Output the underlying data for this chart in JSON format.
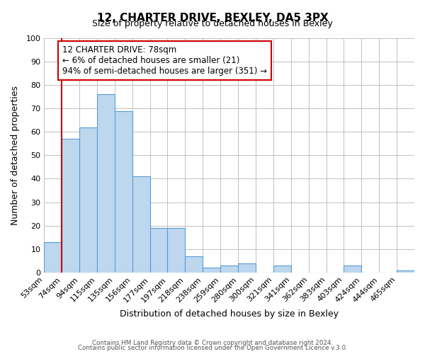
{
  "title": "12, CHARTER DRIVE, BEXLEY, DA5 3PX",
  "subtitle": "Size of property relative to detached houses in Bexley",
  "xlabel": "Distribution of detached houses by size in Bexley",
  "ylabel": "Number of detached properties",
  "bin_labels": [
    "53sqm",
    "74sqm",
    "94sqm",
    "115sqm",
    "135sqm",
    "156sqm",
    "177sqm",
    "197sqm",
    "218sqm",
    "238sqm",
    "259sqm",
    "280sqm",
    "300sqm",
    "321sqm",
    "341sqm",
    "362sqm",
    "383sqm",
    "403sqm",
    "424sqm",
    "444sqm",
    "465sqm"
  ],
  "bar_values": [
    13,
    57,
    62,
    76,
    69,
    41,
    19,
    19,
    7,
    2,
    3,
    4,
    0,
    3,
    0,
    0,
    0,
    3,
    0,
    0,
    1
  ],
  "bar_color": "#bdd7ee",
  "bar_edge_color": "#5b9bd5",
  "property_line_x": 1,
  "ylim": [
    0,
    100
  ],
  "yticks": [
    0,
    10,
    20,
    30,
    40,
    50,
    60,
    70,
    80,
    90,
    100
  ],
  "red_line_color": "#cc0000",
  "annotation_text": "12 CHARTER DRIVE: 78sqm\n← 6% of detached houses are smaller (21)\n94% of semi-detached houses are larger (351) →",
  "annotation_box_edge": "#cc0000",
  "footer_line1": "Contains HM Land Registry data © Crown copyright and database right 2024.",
  "footer_line2": "Contains public sector information licensed under the Open Government Licence v.3.0.",
  "background_color": "#ffffff",
  "grid_color": "#c0c0c0"
}
